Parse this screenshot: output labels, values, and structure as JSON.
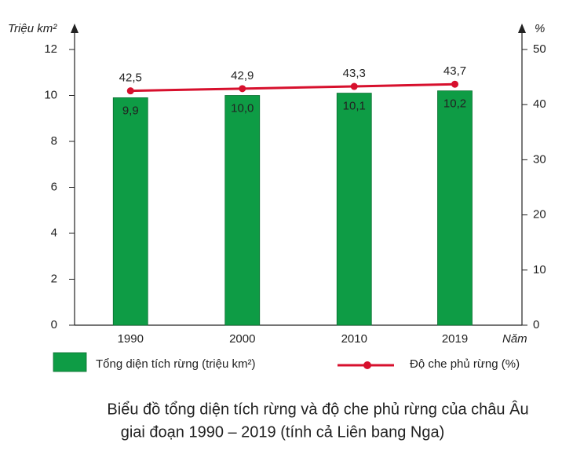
{
  "chart_data": {
    "type": "bar-line",
    "title": [
      "Biểu đồ tổng diện tích rừng và độ che phủ rừng của châu Âu",
      "giai đoạn 1990 – 2019 (tính cả Liên bang Nga)"
    ],
    "y_label": "Triệu km²",
    "y2_label": "%",
    "x_label": "Năm",
    "x": [
      1990,
      2000,
      2010,
      2019
    ],
    "xlim": [
      1985,
      2025
    ],
    "xticks": [
      1990,
      2000,
      2010,
      2019
    ],
    "ylim": [
      0,
      12
    ],
    "yticks": [
      0,
      2,
      4,
      6,
      8,
      10,
      12
    ],
    "y2lim": [
      0,
      50
    ],
    "y2ticks": [
      0,
      10,
      20,
      30,
      40,
      50
    ],
    "series": [
      {
        "name": "Tổng diện tích rừng (triệu km²)",
        "type": "bar",
        "color": "#0e9c45",
        "values": [
          9.9,
          10.0,
          10.1,
          10.2
        ],
        "value_labels": [
          "9,9",
          "10,0",
          "10,1",
          "10,2"
        ]
      },
      {
        "name": "Độ che phủ rừng (%)",
        "type": "line",
        "axis": "y2",
        "color": "#d7102d",
        "values": [
          42.5,
          42.9,
          43.3,
          43.7
        ],
        "value_labels": [
          "42,5",
          "42,9",
          "43,3",
          "43,7"
        ]
      }
    ]
  }
}
